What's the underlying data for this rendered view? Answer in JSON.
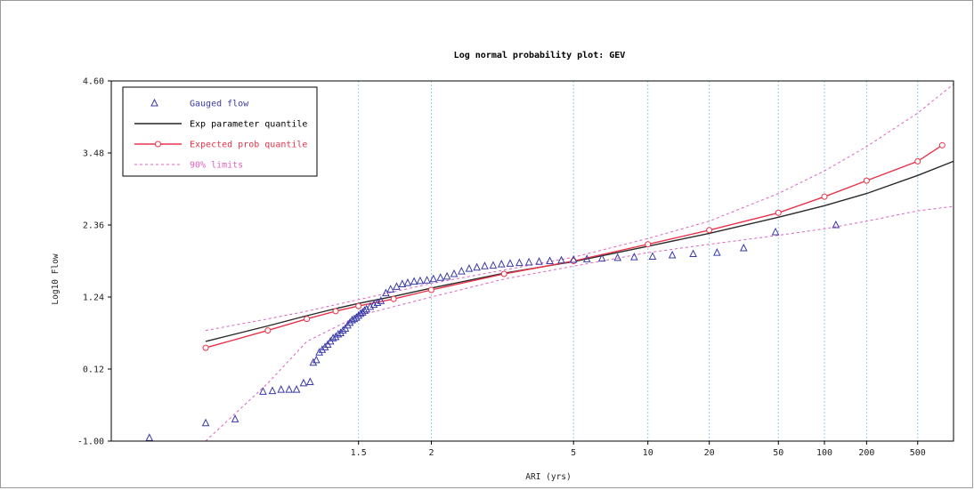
{
  "chart_data": {
    "type": "scatter",
    "title": "Log normal probability plot: GEV",
    "xlabel": "ARI (yrs)",
    "ylabel": "Log10 Flow",
    "y_scale": "linear",
    "x_scale": "log-normal probability (ARI)",
    "xlim": [
      1.03,
      1000
    ],
    "ylim": [
      -1.0,
      4.6
    ],
    "y_ticks": [
      "4.60",
      "3.48",
      "2.36",
      "1.24",
      "0.12",
      "-1.00"
    ],
    "y_tick_values": [
      4.6,
      3.48,
      2.36,
      1.24,
      0.12,
      -1.0
    ],
    "x_ticks": [
      "1.5",
      "2",
      "5",
      "10",
      "20",
      "50",
      "100",
      "200",
      "500"
    ],
    "x_tick_values": [
      1.5,
      2,
      5,
      10,
      20,
      50,
      100,
      200,
      500
    ],
    "grid": "vertical dotted at x ticks",
    "legend_placement": "top-left",
    "legend": [
      {
        "label": "Gauged flow",
        "style": "triangle-marker",
        "color": "#3a3aa8"
      },
      {
        "label": "Exp parameter quantile",
        "style": "solid-line",
        "color": "#222222"
      },
      {
        "label": "Expected prob quantile",
        "style": "line-with-circles",
        "color": "#e8334a"
      },
      {
        "label": "90% limits",
        "style": "dashed-line",
        "color": "#e060c0"
      }
    ],
    "series": [
      {
        "name": "Gauged flow",
        "x": [
          1.05,
          1.1,
          1.14,
          1.19,
          1.21,
          1.23,
          1.25,
          1.27,
          1.29,
          1.31,
          1.32,
          1.33,
          1.34,
          1.35,
          1.36,
          1.37,
          1.38,
          1.39,
          1.4,
          1.41,
          1.42,
          1.43,
          1.44,
          1.45,
          1.46,
          1.47,
          1.48,
          1.49,
          1.5,
          1.51,
          1.52,
          1.53,
          1.54,
          1.56,
          1.58,
          1.6,
          1.62,
          1.65,
          1.68,
          1.72,
          1.76,
          1.8,
          1.85,
          1.9,
          1.96,
          2.02,
          2.09,
          2.16,
          2.24,
          2.33,
          2.43,
          2.54,
          2.66,
          2.8,
          2.95,
          3.12,
          3.32,
          3.55,
          3.82,
          4.14,
          4.53,
          5.0,
          5.6,
          6.4,
          7.4,
          8.7,
          10.5,
          13.0,
          16.5,
          22.0,
          31.0,
          48.0,
          120.0
        ],
        "y": [
          -0.95,
          -0.72,
          -0.66,
          -0.23,
          -0.22,
          -0.2,
          -0.2,
          -0.2,
          -0.1,
          -0.08,
          0.22,
          0.26,
          0.38,
          0.42,
          0.46,
          0.5,
          0.55,
          0.6,
          0.62,
          0.66,
          0.68,
          0.72,
          0.75,
          0.8,
          0.84,
          0.88,
          0.9,
          0.92,
          0.95,
          0.98,
          1.0,
          1.03,
          1.05,
          1.09,
          1.12,
          1.15,
          1.18,
          1.3,
          1.36,
          1.4,
          1.44,
          1.46,
          1.48,
          1.49,
          1.5,
          1.52,
          1.54,
          1.56,
          1.6,
          1.64,
          1.68,
          1.7,
          1.72,
          1.73,
          1.75,
          1.76,
          1.77,
          1.78,
          1.79,
          1.8,
          1.81,
          1.82,
          1.83,
          1.84,
          1.85,
          1.86,
          1.87,
          1.89,
          1.91,
          1.93,
          2.0,
          2.25,
          2.36
        ]
      },
      {
        "name": "Exp parameter quantile",
        "x": [
          1.1,
          1.2,
          1.3,
          1.4,
          1.5,
          1.7,
          2,
          3,
          5,
          10,
          20,
          50,
          100,
          200,
          500,
          1000
        ],
        "y": [
          0.55,
          0.79,
          0.95,
          1.06,
          1.14,
          1.25,
          1.38,
          1.61,
          1.79,
          2.03,
          2.23,
          2.48,
          2.66,
          2.85,
          3.13,
          3.35
        ]
      },
      {
        "name": "Expected prob quantile",
        "x": [
          1.1,
          1.2,
          1.3,
          1.4,
          1.5,
          1.7,
          2,
          3,
          5,
          10,
          20,
          50,
          100,
          200,
          500,
          800
        ],
        "y": [
          0.45,
          0.72,
          0.9,
          1.02,
          1.1,
          1.21,
          1.35,
          1.6,
          1.8,
          2.06,
          2.28,
          2.55,
          2.8,
          3.05,
          3.35,
          3.6
        ]
      },
      {
        "name": "90% limits upper",
        "x": [
          1.1,
          1.2,
          1.3,
          1.5,
          2,
          3,
          5,
          10,
          20,
          50,
          100,
          200,
          500,
          1000
        ],
        "y": [
          0.72,
          0.9,
          1.02,
          1.2,
          1.45,
          1.66,
          1.86,
          2.15,
          2.42,
          2.85,
          3.2,
          3.58,
          4.1,
          4.55
        ]
      },
      {
        "name": "90% limits lower",
        "x": [
          1.1,
          1.2,
          1.3,
          1.5,
          2,
          3,
          5,
          10,
          20,
          50,
          100,
          200,
          500,
          1000
        ],
        "y": [
          -1.0,
          -0.1,
          0.55,
          0.95,
          1.24,
          1.52,
          1.72,
          1.93,
          2.06,
          2.2,
          2.3,
          2.42,
          2.58,
          2.65
        ]
      }
    ]
  }
}
